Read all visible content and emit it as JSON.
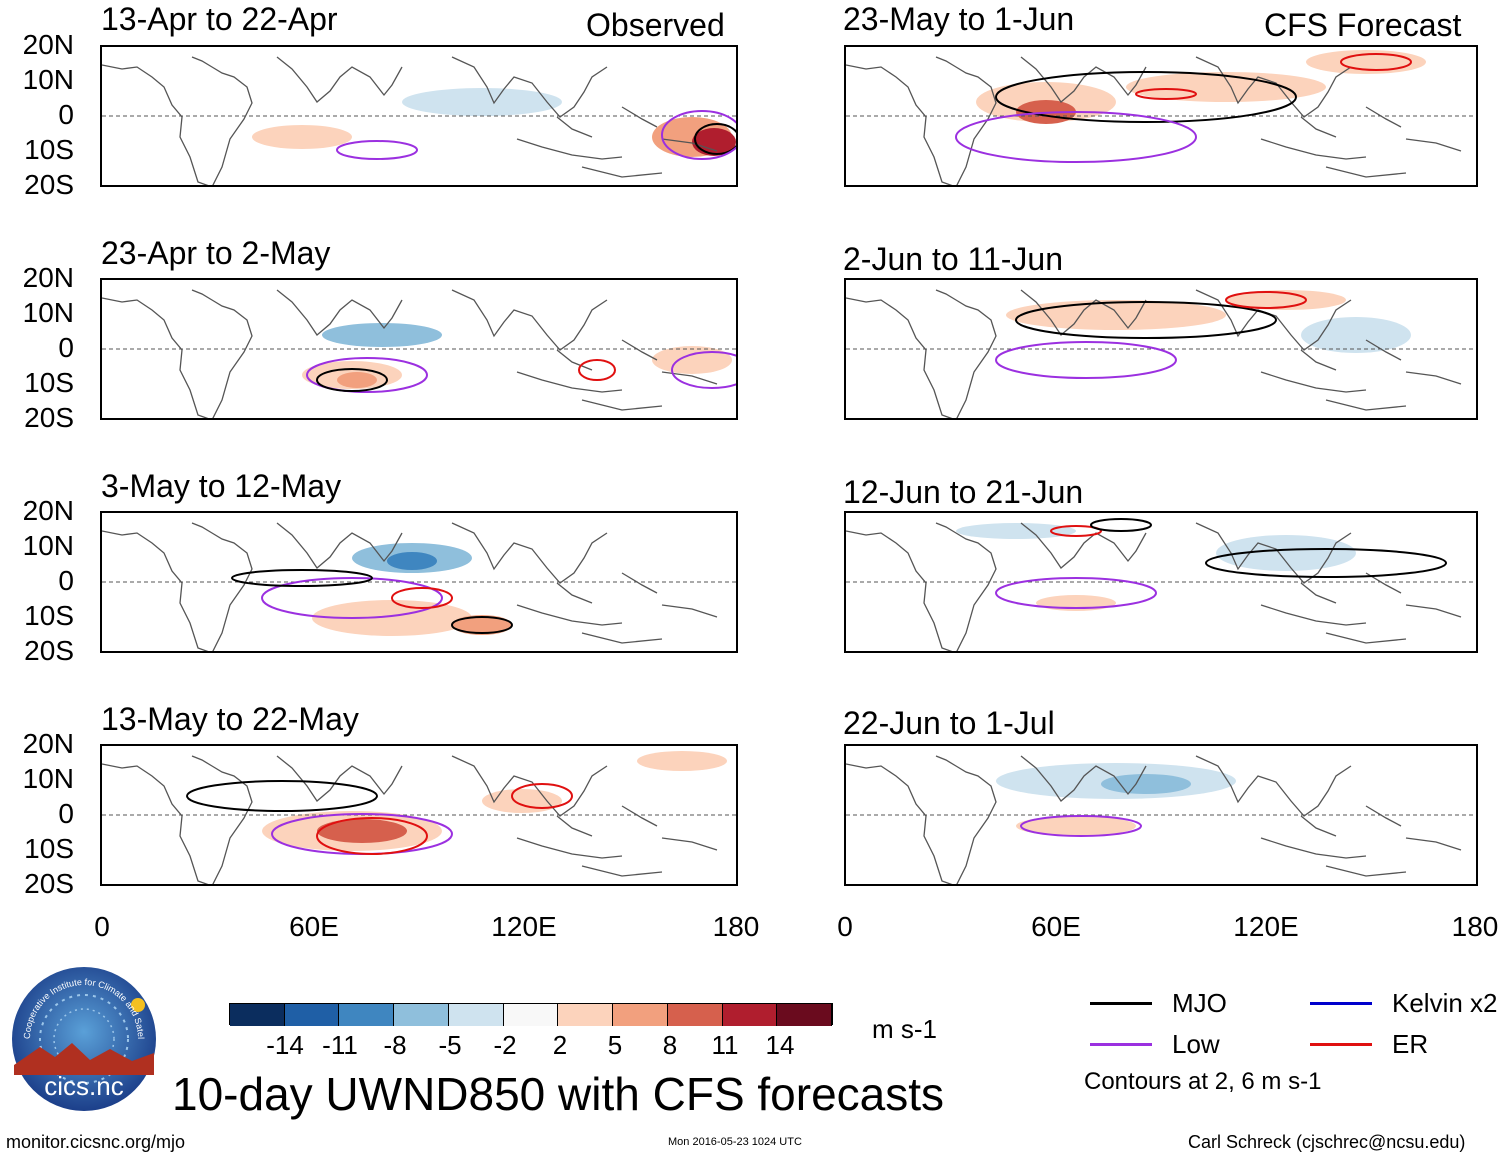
{
  "headers": {
    "observed": "Observed",
    "forecast": "CFS Forecast"
  },
  "lat_labels": [
    "20N",
    "10N",
    "0",
    "10S",
    "20S"
  ],
  "lon_labels": [
    "0",
    "60E",
    "120E",
    "180"
  ],
  "panels": [
    {
      "id": "p1",
      "title": "13-Apr to 22-Apr"
    },
    {
      "id": "p2",
      "title": "23-Apr to 2-May"
    },
    {
      "id": "p3",
      "title": "3-May to 12-May"
    },
    {
      "id": "p4",
      "title": "13-May to 22-May"
    },
    {
      "id": "p5",
      "title": "23-May to 1-Jun"
    },
    {
      "id": "p6",
      "title": "2-Jun to 11-Jun"
    },
    {
      "id": "p7",
      "title": "12-Jun to 21-Jun"
    },
    {
      "id": "p8",
      "title": "22-Jun to 1-Jul"
    }
  ],
  "colorbar": {
    "labels": [
      "-14",
      "-11",
      "-8",
      "-5",
      "-2",
      "2",
      "5",
      "8",
      "11",
      "14"
    ],
    "colors": [
      "#0b2d5e",
      "#1f5fa6",
      "#3f86c0",
      "#8fbfdc",
      "#cfe3ef",
      "#f8f8f8",
      "#fcd3bc",
      "#f2a07e",
      "#d6604d",
      "#b01e2e",
      "#6a0b1e"
    ],
    "units": "m s-1"
  },
  "legend": {
    "items": [
      {
        "label": "MJO",
        "color": "#000000"
      },
      {
        "label": "Kelvin x2",
        "color": "#0000cc"
      },
      {
        "label": "Low",
        "color": "#9b30e0"
      },
      {
        "label": "ER",
        "color": "#e01010"
      }
    ],
    "note": "Contours at 2, 6 m s-1"
  },
  "logo": {
    "text": "cics.nc",
    "ring": "Cooperative Institute for Climate and Satellites"
  },
  "main_title": "10-day UWND850 with CFS forecasts",
  "footer": {
    "url": "monitor.cicsnc.org/mjo",
    "timestamp": "Mon 2016-05-23 1024 UTC",
    "credit": "Carl Schreck (cjschrec@ncsu.edu)"
  }
}
